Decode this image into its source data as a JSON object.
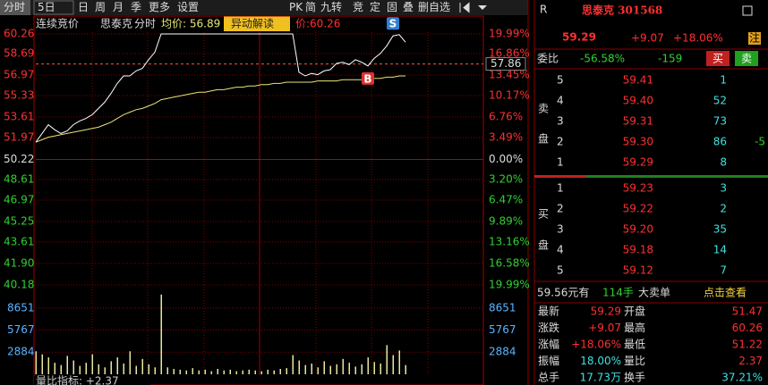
{
  "toolbar": {
    "left": [
      "分时",
      "5日",
      "日",
      "周",
      "月",
      "季",
      "更多",
      "设置"
    ],
    "right": [
      "PK",
      "简",
      "九转",
      "竞",
      "定",
      "固",
      "叠",
      "删自选"
    ]
  },
  "header": {
    "session": "连续竞价",
    "stock": "思泰克",
    "view": "分时",
    "average": "均价: 56.89",
    "badge": "异动解读",
    "price": "价:60.26"
  },
  "price_chart": {
    "ylim": [
      40.18,
      60.26
    ],
    "yticks": [
      60.26,
      58.69,
      56.97,
      55.33,
      53.61,
      51.97,
      50.22,
      48.61,
      46.97,
      45.25,
      43.61,
      {
        "value": 41.9,
        "label": "41.90"
      },
      40.18
    ],
    "percent_labels": [
      "19.99%",
      "16.86%",
      "13.45%",
      "10.17%",
      "6.76%",
      "3.49%",
      "0.00%",
      "3.20%",
      "6.47%",
      "9.89%",
      "13.16%",
      "16.58%",
      "19.99%"
    ],
    "reference": 57.86,
    "price": [
      51.6,
      52.3,
      53.0,
      52.6,
      52.3,
      52.5,
      53.0,
      53.3,
      53.5,
      53.8,
      54.3,
      54.8,
      55.5,
      56.3,
      56.9,
      56.9,
      57.3,
      57.5,
      58.2,
      58.8,
      60.26,
      60.26,
      60.26,
      60.26,
      60.26,
      60.26,
      60.26,
      60.26,
      60.26,
      60.26,
      60.26,
      60.26,
      60.26,
      60.26,
      60.26,
      60.26,
      60.26,
      60.26,
      60.26,
      60.26,
      60.26,
      60.26,
      57.2,
      56.9,
      57.1,
      57.0,
      57.3,
      57.4,
      57.9,
      58.0,
      57.8,
      58.2,
      58.0,
      57.7,
      58.3,
      58.7,
      59.3,
      60.1,
      60.2,
      59.6
    ],
    "average": [
      51.6,
      51.8,
      52.0,
      52.1,
      52.2,
      52.3,
      52.4,
      52.5,
      52.6,
      52.7,
      52.8,
      53.0,
      53.2,
      53.5,
      53.8,
      54.0,
      54.2,
      54.3,
      54.5,
      54.7,
      55.0,
      55.1,
      55.2,
      55.3,
      55.4,
      55.5,
      55.6,
      55.6,
      55.7,
      55.8,
      55.8,
      55.9,
      56.0,
      56.0,
      56.1,
      56.1,
      56.2,
      56.2,
      56.3,
      56.3,
      56.4,
      56.4,
      56.4,
      56.4,
      56.4,
      56.5,
      56.5,
      56.5,
      56.5,
      56.6,
      56.6,
      56.6,
      56.6,
      56.7,
      56.7,
      56.7,
      56.8,
      56.8,
      56.9,
      56.9
    ],
    "markers": [
      "B",
      "S"
    ]
  },
  "volume_chart": {
    "ylim": [
      0,
      11535
    ],
    "yticks": [
      8651,
      5767,
      2884
    ],
    "values": [
      3000,
      2600,
      2200,
      1500,
      1200,
      2400,
      1800,
      1100,
      1500,
      2600,
      1300,
      900,
      1700,
      2200,
      1400,
      3000,
      1100,
      2000,
      1300,
      900,
      10400,
      900,
      700,
      600,
      500,
      800,
      500,
      600,
      400,
      700,
      500,
      600,
      400,
      500,
      600,
      500,
      400,
      600,
      500,
      700,
      800,
      2500,
      1800,
      1200,
      1400,
      900,
      1700,
      1100,
      1300,
      2000,
      1500,
      1000,
      1300,
      2200,
      1600,
      1400,
      3800,
      2500,
      3100,
      1200
    ],
    "indicator": "量比指标: +2.37"
  },
  "quote": {
    "flag": "R",
    "title": "思泰克 301568",
    "price": "59.29",
    "change": "+9.07",
    "change_pct": "+18.06%",
    "badge": "注",
    "ratio_label": "委比",
    "ratio": "-56.58%",
    "diff": "-159",
    "buy": "买",
    "sell": "卖"
  },
  "order_book": {
    "sell_label": [
      "卖",
      "盘"
    ],
    "buy_label": [
      "买",
      "盘"
    ],
    "asks": [
      [
        "5",
        "59.41",
        "1"
      ],
      [
        "4",
        "59.40",
        "52"
      ],
      [
        "3",
        "59.31",
        "73"
      ],
      [
        "2",
        "59.30",
        "86"
      ],
      [
        "1",
        "59.29",
        "8"
      ]
    ],
    "bids": [
      [
        "1",
        "59.23",
        "3"
      ],
      [
        "2",
        "59.22",
        "2"
      ],
      [
        "3",
        "59.20",
        "35"
      ],
      [
        "4",
        "59.18",
        "14"
      ],
      [
        "5",
        "59.12",
        "7"
      ]
    ],
    "side_note": "-5"
  },
  "big_order": [
    "59.56元有",
    "114手",
    "大卖单",
    "点击查看"
  ],
  "stats": [
    [
      "最新",
      "59.29",
      "开盘",
      "51.47"
    ],
    [
      "涨跌",
      "+9.07",
      "最高",
      "60.26"
    ],
    [
      "涨幅",
      "+18.06%",
      "最低",
      "51.22"
    ],
    [
      "振幅",
      "18.00%",
      "量比",
      "2.37"
    ],
    [
      "总手",
      "17.73万",
      "换手",
      "37.21%"
    ]
  ]
}
